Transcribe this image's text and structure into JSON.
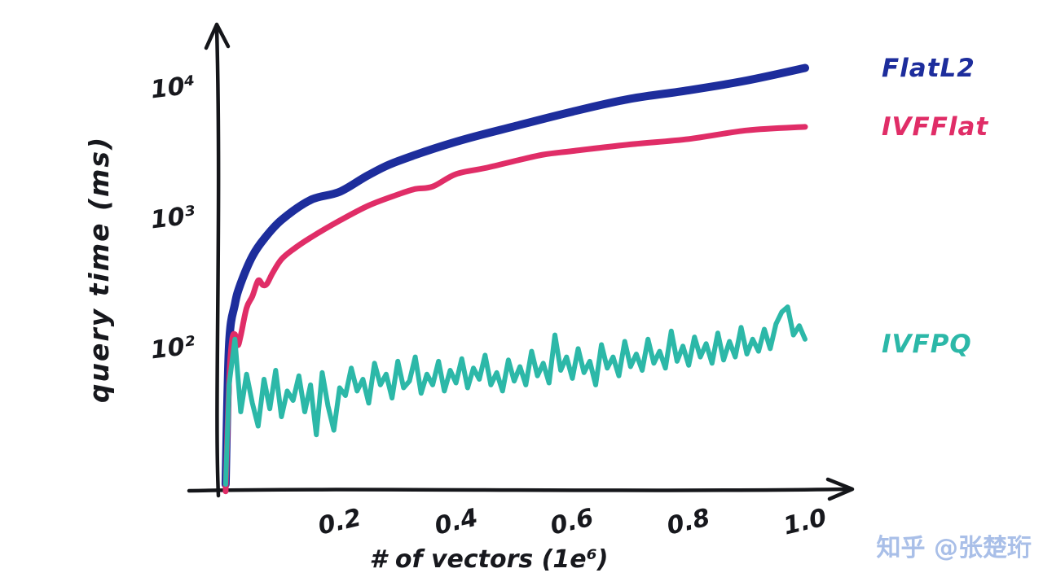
{
  "watermark": "知乎 @张楚珩",
  "chart_data": {
    "type": "line",
    "title": "",
    "xlabel": "# of vectors (1e⁶)",
    "ylabel": "query time (ms)",
    "grid": false,
    "legend_position": "right-of-line-ends",
    "x_axis": {
      "scale": "linear",
      "min": 0,
      "max": 1.05
    },
    "y_axis": {
      "scale": "log",
      "min": 10,
      "max": 20000
    },
    "x_ticks": [
      {
        "label": "0.2",
        "value": 0.2
      },
      {
        "label": "0.4",
        "value": 0.4
      },
      {
        "label": "0.6",
        "value": 0.6
      },
      {
        "label": "0.8",
        "value": 0.8
      },
      {
        "label": "1.0",
        "value": 1.0
      }
    ],
    "y_ticks": [
      {
        "label": "10²",
        "value": 100
      },
      {
        "label": "10³",
        "value": 1000
      },
      {
        "label": "10⁴",
        "value": 10000
      }
    ],
    "series": [
      {
        "name": "FlatL2",
        "color": "#1d2d9c",
        "stroke_width": 10,
        "style": "smooth",
        "points": [
          [
            0.004,
            10
          ],
          [
            0.01,
            120
          ],
          [
            0.02,
            240
          ],
          [
            0.03,
            340
          ],
          [
            0.05,
            570
          ],
          [
            0.07,
            780
          ],
          [
            0.1,
            1050
          ],
          [
            0.15,
            1500
          ],
          [
            0.2,
            1800
          ],
          [
            0.25,
            2400
          ],
          [
            0.3,
            2950
          ],
          [
            0.4,
            4250
          ],
          [
            0.5,
            5750
          ],
          [
            0.6,
            7250
          ],
          [
            0.7,
            8900
          ],
          [
            0.8,
            10700
          ],
          [
            0.9,
            12900
          ],
          [
            1.0,
            15500
          ]
        ]
      },
      {
        "name": "IVFFlat",
        "color": "#e02d67",
        "stroke_width": 7,
        "style": "smooth",
        "points": [
          [
            0.004,
            9
          ],
          [
            0.01,
            60
          ],
          [
            0.015,
            125
          ],
          [
            0.02,
            145
          ],
          [
            0.025,
            118
          ],
          [
            0.03,
            135
          ],
          [
            0.04,
            225
          ],
          [
            0.05,
            285
          ],
          [
            0.06,
            365
          ],
          [
            0.068,
            330
          ],
          [
            0.075,
            350
          ],
          [
            0.085,
            430
          ],
          [
            0.1,
            525
          ],
          [
            0.12,
            625
          ],
          [
            0.15,
            800
          ],
          [
            0.2,
            1070
          ],
          [
            0.25,
            1350
          ],
          [
            0.3,
            1670
          ],
          [
            0.33,
            1900
          ],
          [
            0.36,
            1930
          ],
          [
            0.4,
            2350
          ],
          [
            0.45,
            2700
          ],
          [
            0.5,
            3100
          ],
          [
            0.55,
            3350
          ],
          [
            0.6,
            3550
          ],
          [
            0.7,
            4150
          ],
          [
            0.8,
            4550
          ],
          [
            0.9,
            5100
          ],
          [
            1.0,
            5500
          ]
        ]
      },
      {
        "name": "IVFPQ",
        "color": "#2cb8a8",
        "stroke_width": 6,
        "style": "jagged",
        "lead_point": [
          0.004,
          10
        ],
        "x_start": 0.01,
        "x_step": 0.01,
        "values": [
          58,
          130,
          36,
          70,
          42,
          28,
          64,
          38,
          75,
          33,
          52,
          44,
          68,
          36,
          58,
          24,
          72,
          40,
          26,
          55,
          48,
          78,
          52,
          64,
          42,
          85,
          58,
          70,
          46,
          88,
          55,
          62,
          95,
          50,
          70,
          58,
          88,
          52,
          75,
          60,
          92,
          55,
          78,
          64,
          98,
          58,
          72,
          52,
          90,
          62,
          80,
          58,
          105,
          68,
          85,
          60,
          140,
          75,
          95,
          65,
          110,
          72,
          88,
          58,
          118,
          78,
          95,
          68,
          125,
          80,
          100,
          75,
          130,
          85,
          105,
          78,
          150,
          88,
          115,
          82,
          135,
          95,
          120,
          85,
          145,
          90,
          125,
          95,
          160,
          100,
          130,
          105,
          155,
          110,
          170,
          210,
          230,
          140,
          165,
          130
        ]
      }
    ]
  }
}
